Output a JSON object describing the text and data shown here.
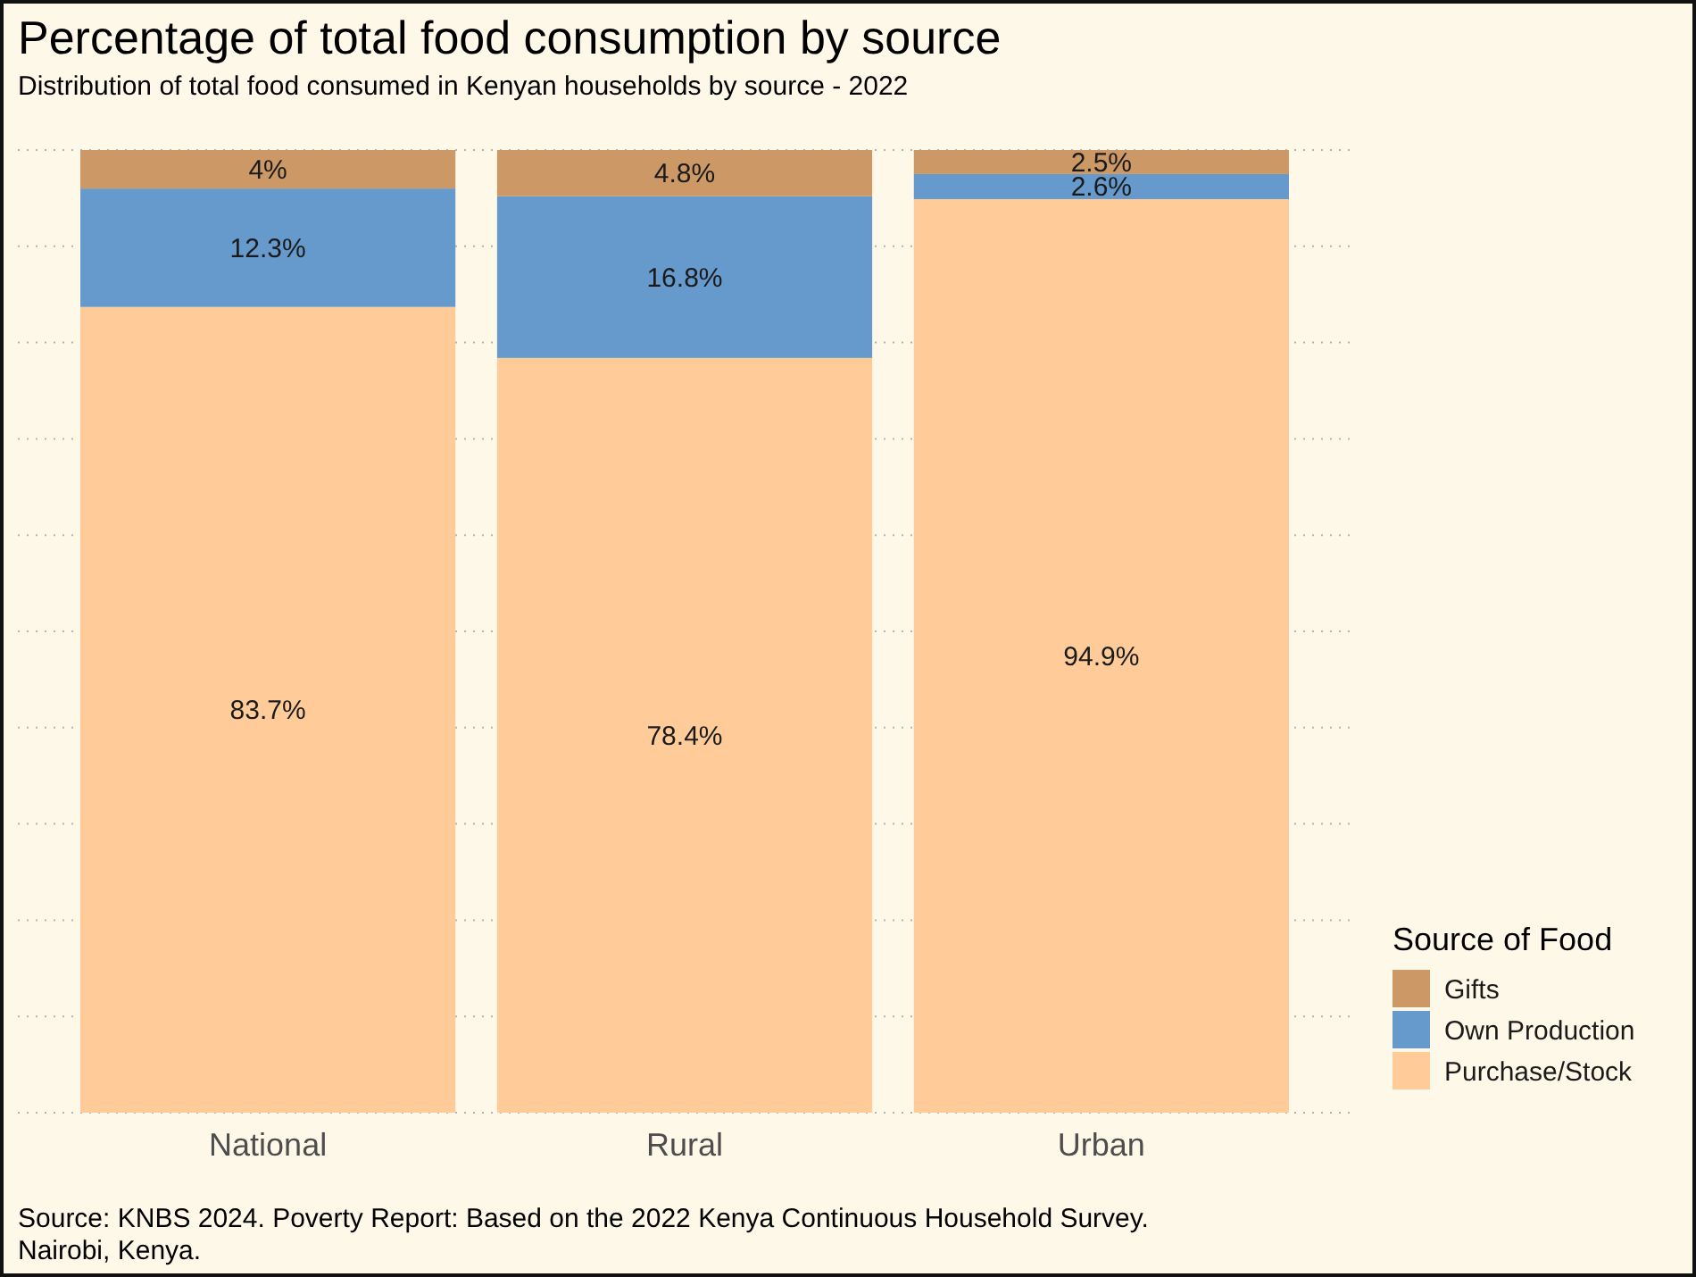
{
  "chart_data": {
    "type": "bar",
    "title": "Percentage of total food consumption by source",
    "subtitle": "Distribution of total food consumed in Kenyan households by source - 2022",
    "categories": [
      "National",
      "Rural",
      "Urban"
    ],
    "stacked": true,
    "series": [
      {
        "name": "Purchase/Stock",
        "color": "#ffcc99",
        "values": [
          83.7,
          78.4,
          94.9
        ],
        "value_labels": [
          "83.7%",
          "78.4%",
          "94.9%"
        ]
      },
      {
        "name": "Own Production",
        "color": "#6699cc",
        "values": [
          12.3,
          16.8,
          2.6
        ],
        "value_labels": [
          "12.3%",
          "16.8%",
          "2.6%"
        ]
      },
      {
        "name": "Gifts",
        "color": "#cc9966",
        "values": [
          4,
          4.8,
          2.5
        ],
        "value_labels": [
          "4%",
          "4.8%",
          "2.5%"
        ]
      }
    ],
    "ylim": [
      0,
      100
    ],
    "yticks": [
      {
        "value": 0,
        "label": null
      },
      {
        "value": 10,
        "label": null
      },
      {
        "value": 20,
        "label": null
      },
      {
        "value": 30,
        "label": null
      },
      {
        "value": 40,
        "label": null
      },
      {
        "value": 50,
        "label": null
      },
      {
        "value": 60,
        "label": null
      },
      {
        "value": 70,
        "label": null
      },
      {
        "value": 80,
        "label": null
      },
      {
        "value": 90,
        "label": null
      },
      {
        "value": 100,
        "label": null
      }
    ],
    "tick_labels": "x",
    "grid": "y",
    "legend": "bottom right",
    "legend_title": "Source of Food",
    "annotations": [
      "Source: KNBS 2024. Poverty Report: Based on the 2022 Kenya Continuous Household Survey.\nNairobi, Kenya."
    ]
  }
}
